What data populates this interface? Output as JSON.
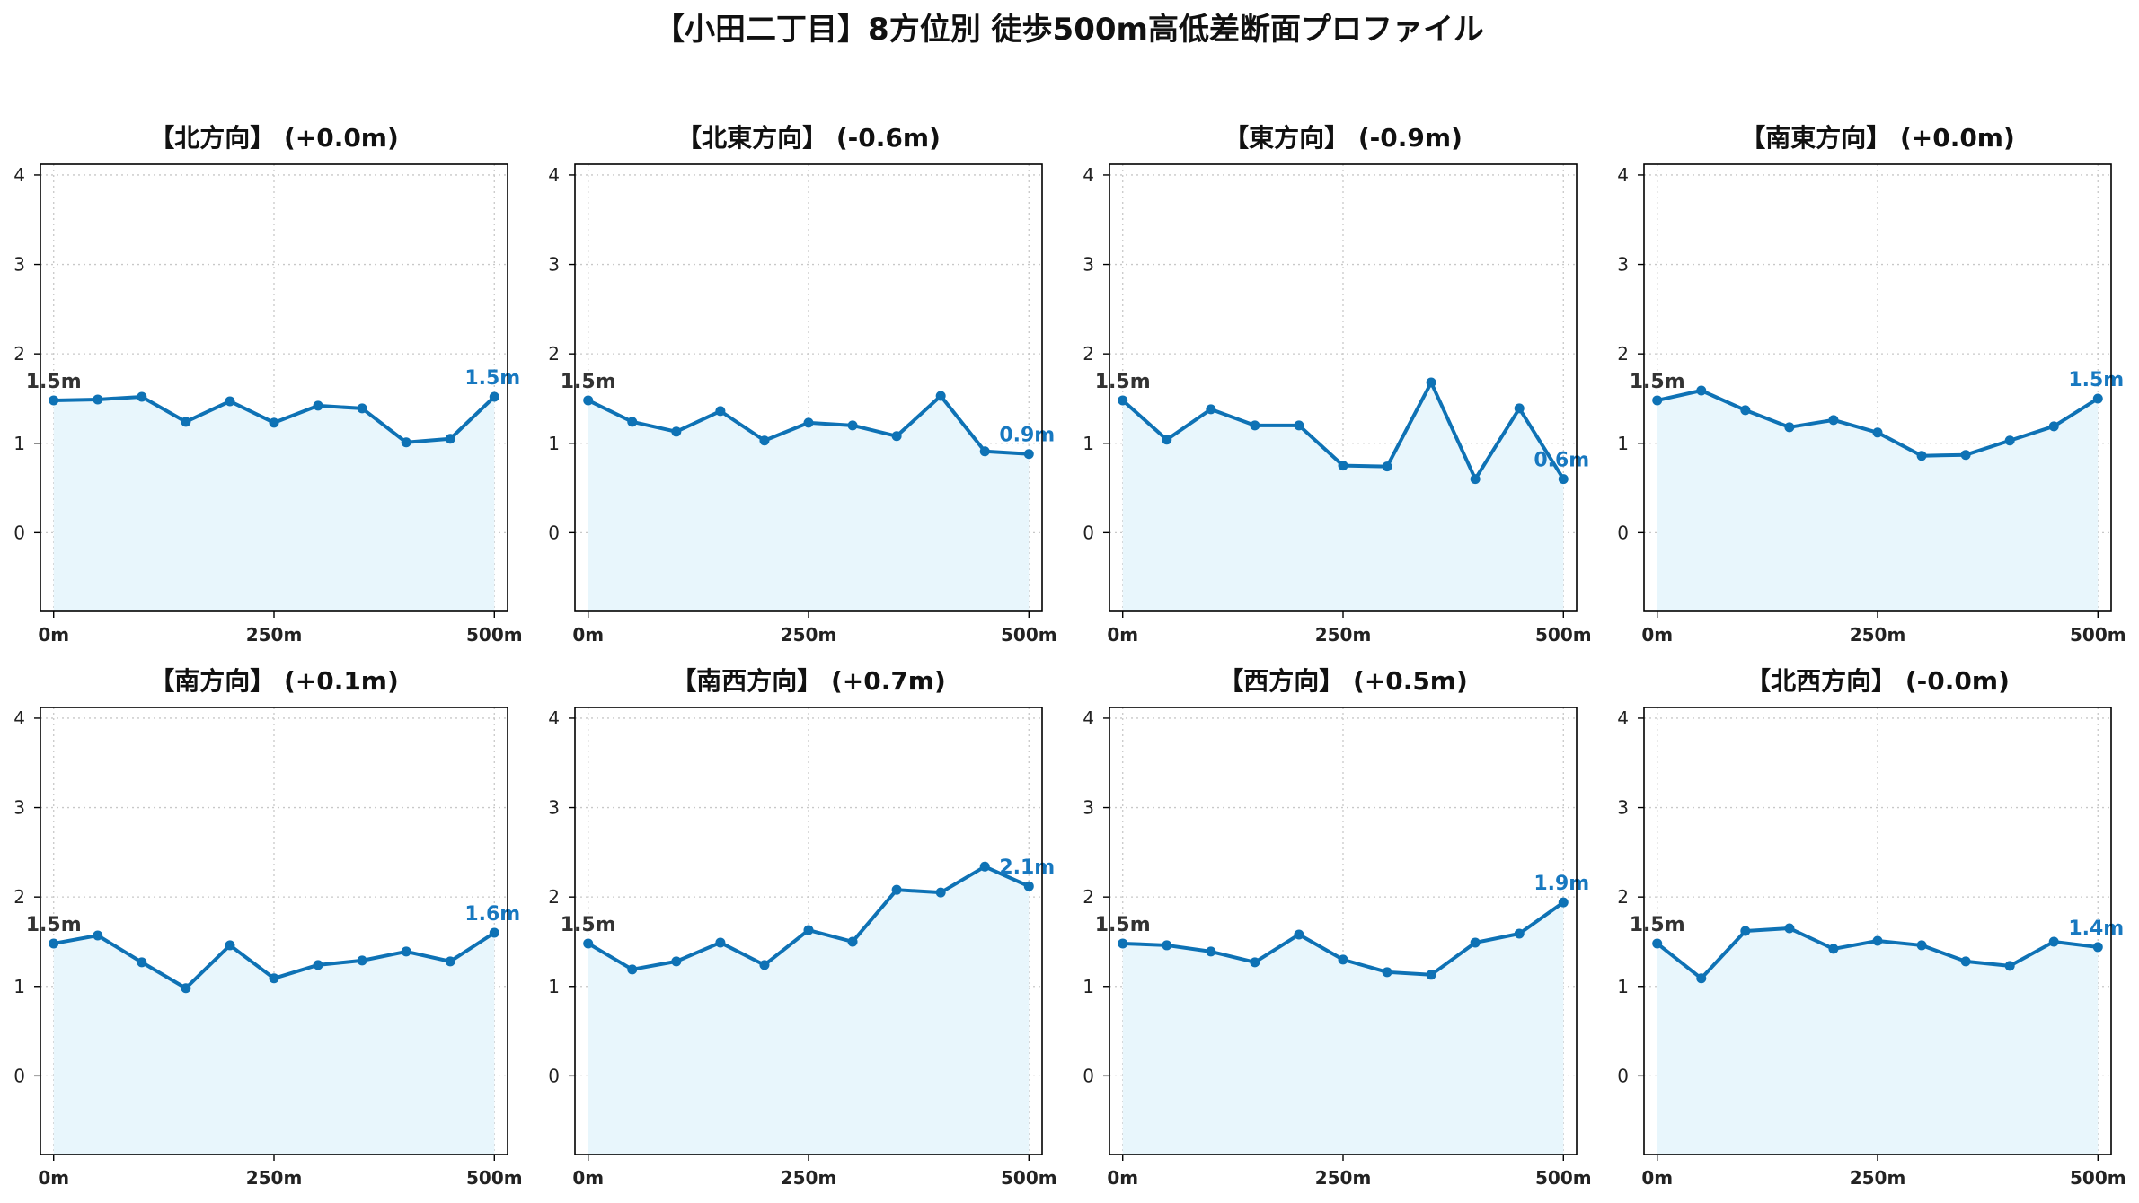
{
  "title": "【小田二丁目】8方位別 徒歩500m高低差断面プロファイル",
  "colors": {
    "line": "#0e72b5",
    "fill": "#e8f6fc",
    "end_label": "#1778c0",
    "start_label": "#333333"
  },
  "chart_data": [
    {
      "type": "line",
      "title": "【北方向】 (+0.0m)",
      "x": [
        0,
        50,
        100,
        150,
        200,
        250,
        300,
        350,
        400,
        450,
        500
      ],
      "values": [
        1.48,
        1.49,
        1.52,
        1.24,
        1.47,
        1.23,
        1.42,
        1.39,
        1.01,
        1.05,
        1.52
      ],
      "start_label": "1.5m",
      "end_label": "1.5m",
      "xticks": [
        "0m",
        "250m",
        "500m"
      ],
      "yticks": [
        "0",
        "1",
        "2",
        "3",
        "4"
      ],
      "xlim": [
        -15,
        515
      ],
      "ylim": [
        -0.88,
        4.12
      ],
      "grid": true
    },
    {
      "type": "line",
      "title": "【北東方向】 (-0.6m)",
      "x": [
        0,
        50,
        100,
        150,
        200,
        250,
        300,
        350,
        400,
        450,
        500
      ],
      "values": [
        1.48,
        1.24,
        1.13,
        1.36,
        1.03,
        1.23,
        1.2,
        1.08,
        1.53,
        0.91,
        0.88
      ],
      "start_label": "1.5m",
      "end_label": "0.9m",
      "xticks": [
        "0m",
        "250m",
        "500m"
      ],
      "yticks": [
        "0",
        "1",
        "2",
        "3",
        "4"
      ],
      "xlim": [
        -15,
        515
      ],
      "ylim": [
        -0.88,
        4.12
      ],
      "grid": true
    },
    {
      "type": "line",
      "title": "【東方向】 (-0.9m)",
      "x": [
        0,
        50,
        100,
        150,
        200,
        250,
        300,
        350,
        400,
        450,
        500
      ],
      "values": [
        1.48,
        1.04,
        1.38,
        1.2,
        1.2,
        0.75,
        0.74,
        1.68,
        0.6,
        1.39,
        0.6
      ],
      "start_label": "1.5m",
      "end_label": "0.6m",
      "xticks": [
        "0m",
        "250m",
        "500m"
      ],
      "yticks": [
        "0",
        "1",
        "2",
        "3",
        "4"
      ],
      "xlim": [
        -15,
        515
      ],
      "ylim": [
        -0.88,
        4.12
      ],
      "grid": true
    },
    {
      "type": "line",
      "title": "【南東方向】 (+0.0m)",
      "x": [
        0,
        50,
        100,
        150,
        200,
        250,
        300,
        350,
        400,
        450,
        500
      ],
      "values": [
        1.48,
        1.59,
        1.37,
        1.18,
        1.26,
        1.12,
        0.86,
        0.87,
        1.03,
        1.19,
        1.5
      ],
      "start_label": "1.5m",
      "end_label": "1.5m",
      "xticks": [
        "0m",
        "250m",
        "500m"
      ],
      "yticks": [
        "0",
        "1",
        "2",
        "3",
        "4"
      ],
      "xlim": [
        -15,
        515
      ],
      "ylim": [
        -0.88,
        4.12
      ],
      "grid": true
    },
    {
      "type": "line",
      "title": "【南方向】 (+0.1m)",
      "x": [
        0,
        50,
        100,
        150,
        200,
        250,
        300,
        350,
        400,
        450,
        500
      ],
      "values": [
        1.48,
        1.57,
        1.27,
        0.98,
        1.46,
        1.09,
        1.24,
        1.29,
        1.39,
        1.28,
        1.6
      ],
      "start_label": "1.5m",
      "end_label": "1.6m",
      "xticks": [
        "0m",
        "250m",
        "500m"
      ],
      "yticks": [
        "0",
        "1",
        "2",
        "3",
        "4"
      ],
      "xlim": [
        -15,
        515
      ],
      "ylim": [
        -0.88,
        4.12
      ],
      "grid": true
    },
    {
      "type": "line",
      "title": "【南西方向】 (+0.7m)",
      "x": [
        0,
        50,
        100,
        150,
        200,
        250,
        300,
        350,
        400,
        450,
        500
      ],
      "values": [
        1.48,
        1.19,
        1.28,
        1.49,
        1.24,
        1.63,
        1.5,
        2.08,
        2.05,
        2.34,
        2.12
      ],
      "start_label": "1.5m",
      "end_label": "2.1m",
      "xticks": [
        "0m",
        "250m",
        "500m"
      ],
      "yticks": [
        "0",
        "1",
        "2",
        "3",
        "4"
      ],
      "xlim": [
        -15,
        515
      ],
      "ylim": [
        -0.88,
        4.12
      ],
      "grid": true
    },
    {
      "type": "line",
      "title": "【西方向】 (+0.5m)",
      "x": [
        0,
        50,
        100,
        150,
        200,
        250,
        300,
        350,
        400,
        450,
        500
      ],
      "values": [
        1.48,
        1.46,
        1.39,
        1.27,
        1.58,
        1.3,
        1.16,
        1.13,
        1.49,
        1.59,
        1.94
      ],
      "start_label": "1.5m",
      "end_label": "1.9m",
      "xticks": [
        "0m",
        "250m",
        "500m"
      ],
      "yticks": [
        "0",
        "1",
        "2",
        "3",
        "4"
      ],
      "xlim": [
        -15,
        515
      ],
      "ylim": [
        -0.88,
        4.12
      ],
      "grid": true
    },
    {
      "type": "line",
      "title": "【北西方向】 (-0.0m)",
      "x": [
        0,
        50,
        100,
        150,
        200,
        250,
        300,
        350,
        400,
        450,
        500
      ],
      "values": [
        1.48,
        1.09,
        1.62,
        1.65,
        1.42,
        1.51,
        1.46,
        1.28,
        1.23,
        1.5,
        1.44
      ],
      "start_label": "1.5m",
      "end_label": "1.4m",
      "xticks": [
        "0m",
        "250m",
        "500m"
      ],
      "yticks": [
        "0",
        "1",
        "2",
        "3",
        "4"
      ],
      "xlim": [
        -15,
        515
      ],
      "ylim": [
        -0.88,
        4.12
      ],
      "grid": true
    }
  ]
}
